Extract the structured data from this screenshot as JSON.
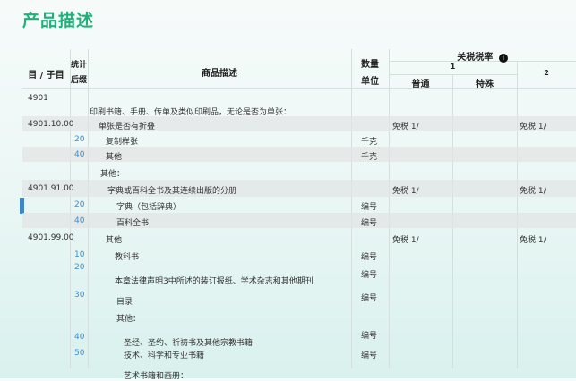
{
  "title": "产品描述",
  "header": {
    "code": "目 / 子目",
    "stat1": "统计",
    "stat2": "后缀",
    "desc": "商品描述",
    "unit1": "数量",
    "unit2": "单位",
    "rates": "关税税率",
    "col1": "1",
    "general": "普通",
    "special": "特殊",
    "col2": "2",
    "info_icon": "info-icon"
  },
  "rows": [
    {
      "code": "4901",
      "stat": "",
      "desc": "印刷书籍、手册、传单及类似印刷品，无论是否为单张：",
      "unit": "",
      "general": "",
      "col2": ""
    },
    {
      "code": "4901.10.00",
      "stat": "",
      "desc": "单张是否有折叠",
      "unit": "",
      "general": "免税 1/",
      "col2": "免税 1/"
    },
    {
      "code": "",
      "stat": "20",
      "desc": "复制样张",
      "unit": "千克",
      "general": "",
      "col2": ""
    },
    {
      "code": "",
      "stat": "40",
      "desc": "其他",
      "unit": "千克",
      "general": "",
      "col2": ""
    },
    {
      "code": "",
      "stat": "",
      "desc": "其他：",
      "unit": "",
      "general": "",
      "col2": ""
    },
    {
      "code": "4901.91.00",
      "stat": "",
      "desc": "字典或百科全书及其连续出版的分册",
      "unit": "",
      "general": "免税 1/",
      "col2": "免税 1/"
    },
    {
      "code": "",
      "stat": "20",
      "desc": "字典（包括辞典）",
      "unit": "编号",
      "general": "",
      "col2": ""
    },
    {
      "code": "",
      "stat": "40",
      "desc": "百科全书",
      "unit": "编号",
      "general": "",
      "col2": ""
    },
    {
      "code": "4901.99.00",
      "stat": "",
      "desc": "其他",
      "unit": "",
      "general": "免税 1/",
      "col2": "免税 1/"
    },
    {
      "code": "",
      "stat": "10",
      "desc": "教科书",
      "unit": "编号",
      "general": "",
      "col2": ""
    },
    {
      "code": "",
      "stat": "20",
      "desc": "本章法律声明3中所述的装订报纸、学术杂志和其他期刊",
      "unit": "编号",
      "general": "",
      "col2": ""
    },
    {
      "code": "",
      "stat": "30",
      "desc": "目录",
      "unit": "编号",
      "general": "",
      "col2": ""
    },
    {
      "code": "",
      "stat": "",
      "desc": "其他：",
      "unit": "",
      "general": "",
      "col2": ""
    },
    {
      "code": "",
      "stat": "40",
      "desc": "圣经、圣约、祈祷书及其他宗教书籍",
      "unit": "编号",
      "general": "",
      "col2": ""
    },
    {
      "code": "",
      "stat": "50",
      "desc": "技术、科学和专业书籍",
      "unit": "编号",
      "general": "",
      "col2": ""
    },
    {
      "code": "",
      "stat": "",
      "desc": "艺术书籍和画册：",
      "unit": "",
      "general": "",
      "col2": ""
    }
  ]
}
